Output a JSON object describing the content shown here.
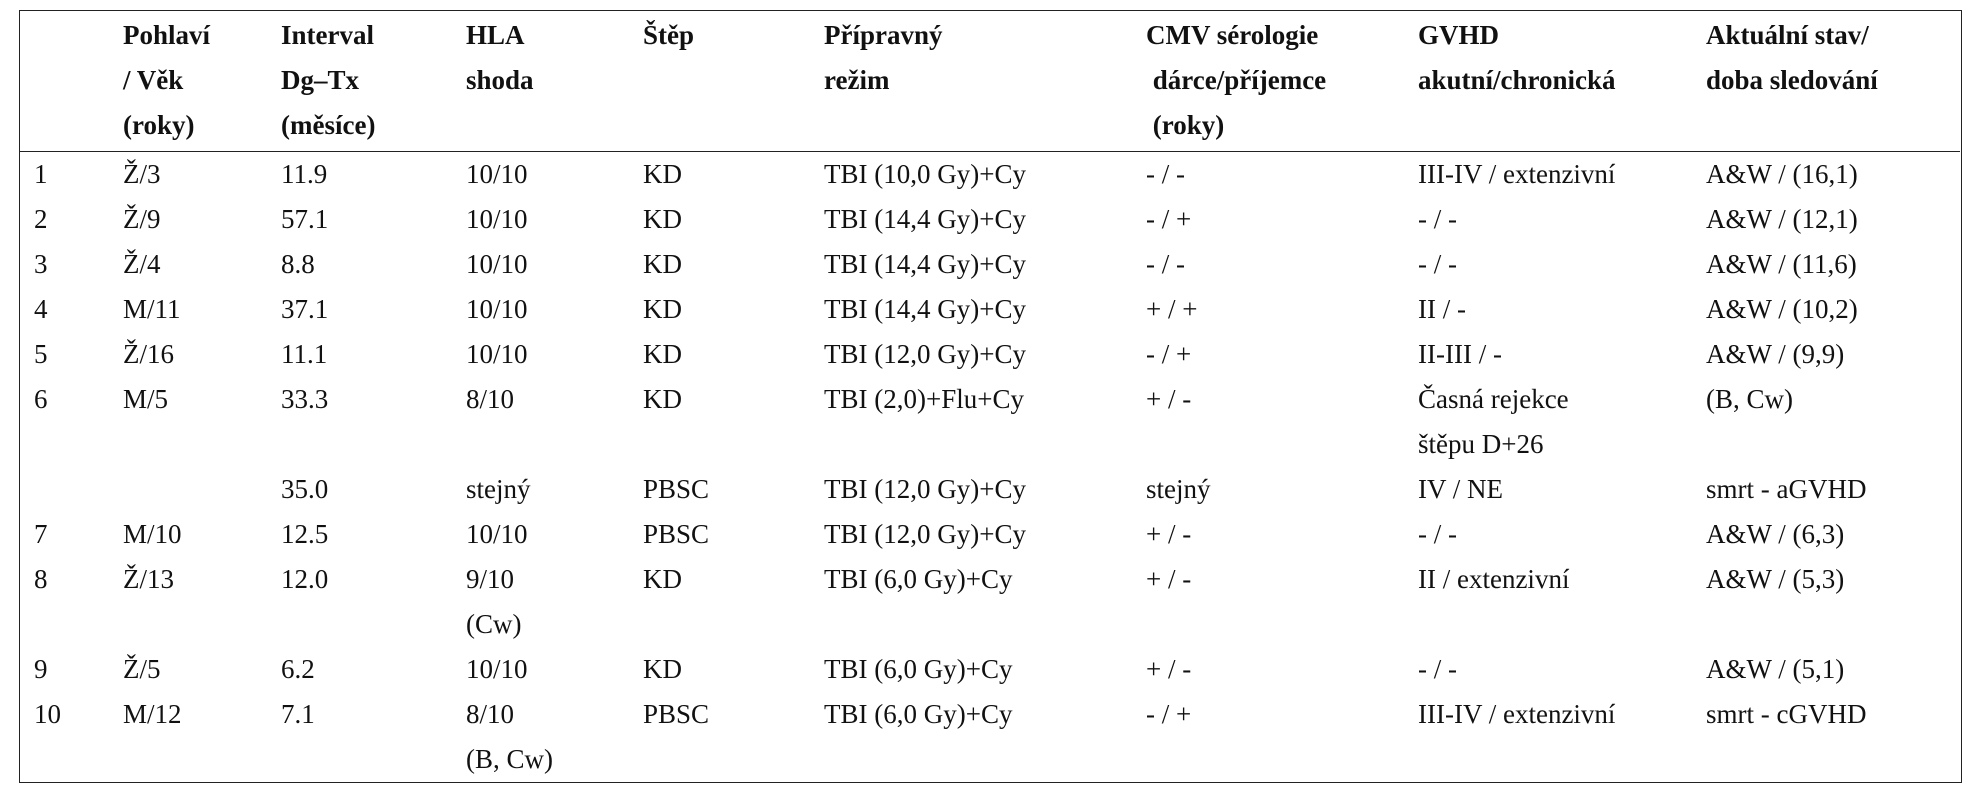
{
  "table": {
    "header": [
      null,
      [
        "Pohlaví",
        "/ Věk",
        "(roky)"
      ],
      [
        "Interval",
        "Dg–Tx",
        "(měsíce)"
      ],
      [
        "HLA",
        "shoda"
      ],
      [
        "Štěp"
      ],
      [
        "Přípravný",
        "režim"
      ],
      [
        "CMV sérologie",
        " dárce/příjemce",
        " (roky)"
      ],
      [
        "GVHD",
        "akutní/chronická"
      ],
      [
        "Aktuální stav/",
        "doba sledování"
      ]
    ],
    "rows": [
      [
        "1",
        "Ž/3",
        "11.9",
        "10/10",
        "KD",
        "TBI (10,0 Gy)+Cy",
        "- / -",
        "III-IV / extenzivní",
        "A&W / (16,1)"
      ],
      [
        "2",
        "Ž/9",
        "57.1",
        "10/10",
        "KD",
        "TBI (14,4 Gy)+Cy",
        "- / +",
        "- / -",
        "A&W / (12,1)"
      ],
      [
        "3",
        "Ž/4",
        "8.8",
        "10/10",
        "KD",
        "TBI (14,4 Gy)+Cy",
        "- / -",
        "- / -",
        "A&W / (11,6)"
      ],
      [
        "4",
        "M/11",
        "37.1",
        "10/10",
        "KD",
        "TBI (14,4 Gy)+Cy",
        "+ / +",
        "II / -",
        "A&W / (10,2)"
      ],
      [
        "5",
        "Ž/16",
        "11.1",
        "10/10",
        "KD",
        "TBI (12,0 Gy)+Cy",
        "- / +",
        "II-III / -",
        "A&W / (9,9)"
      ],
      [
        "6",
        "M/5",
        "33.3",
        "8/10",
        "KD",
        "TBI (2,0)+Flu+Cy",
        "+ / -",
        [
          "Časná rejekce",
          "štěpu D+26"
        ],
        "(B, Cw)"
      ],
      [
        null,
        null,
        "35.0",
        "stejný",
        "PBSC",
        "TBI (12,0 Gy)+Cy",
        "stejný",
        "IV / NE",
        "smrt - aGVHD"
      ],
      [
        "7",
        "M/10",
        "12.5",
        "10/10",
        "PBSC",
        "TBI (12,0 Gy)+Cy",
        "+ / -",
        "- / -",
        "A&W / (6,3)"
      ],
      [
        "8",
        "Ž/13",
        "12.0",
        [
          "9/10",
          "(Cw)"
        ],
        "KD",
        "TBI (6,0 Gy)+Cy",
        "+ / -",
        "II / extenzivní",
        "A&W / (5,3)"
      ],
      [
        "9",
        "Ž/5",
        "6.2",
        "10/10",
        "KD",
        "TBI (6,0 Gy)+Cy",
        "+ / -",
        "- / -",
        "A&W / (5,1)"
      ],
      [
        "10",
        "M/12",
        "7.1",
        [
          "8/10",
          "(B, Cw)"
        ],
        "PBSC",
        "TBI (6,0 Gy)+Cy",
        "- / +",
        "III-IV / extenzivní",
        "smrt - cGVHD"
      ]
    ]
  }
}
